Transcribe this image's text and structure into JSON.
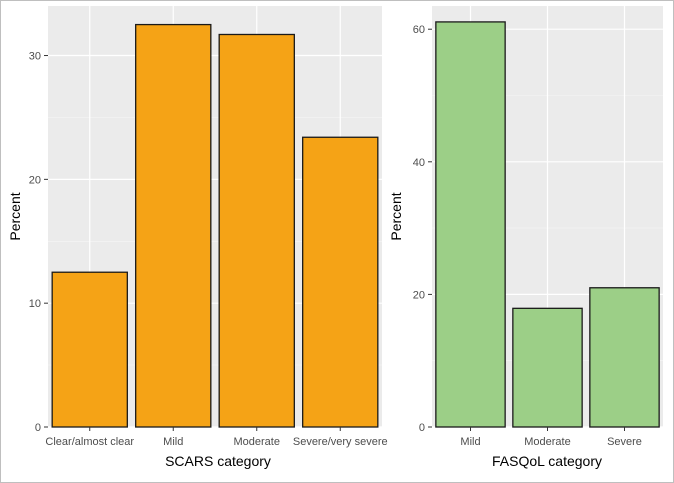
{
  "colors": {
    "panel_bg": "#ebebeb",
    "grid_major": "#ffffff",
    "grid_minor": "#f5f5f5",
    "bar_edge": "#1a1a1a",
    "tick_mark": "#333333"
  },
  "chart_data": [
    {
      "type": "bar",
      "title": "",
      "xlabel": "SCARS category",
      "ylabel": "Percent",
      "categories": [
        "Clear/almost clear",
        "Mild",
        "Moderate",
        "Severe/very severe"
      ],
      "values": [
        12.5,
        32.5,
        31.7,
        23.4
      ],
      "ylim": [
        0,
        34
      ],
      "yticks": [
        0,
        10,
        20,
        30
      ],
      "yminor": [
        5,
        15,
        25
      ],
      "ytick_labels": [
        "0",
        "10",
        "20",
        "30"
      ],
      "bar_color": "#f5a316",
      "grid": true,
      "legend": "none"
    },
    {
      "type": "bar",
      "title": "",
      "xlabel": "FASQoL category",
      "ylabel": "Percent",
      "categories": [
        "Mild",
        "Moderate",
        "Severe"
      ],
      "values": [
        61.1,
        17.9,
        21.0
      ],
      "ylim": [
        0,
        63.5
      ],
      "yticks": [
        0,
        20,
        40,
        60
      ],
      "yminor": [
        10,
        30,
        50
      ],
      "ytick_labels": [
        "0",
        "20",
        "40",
        "60"
      ],
      "bar_color": "#9ccf87",
      "grid": true,
      "legend": "none"
    }
  ]
}
